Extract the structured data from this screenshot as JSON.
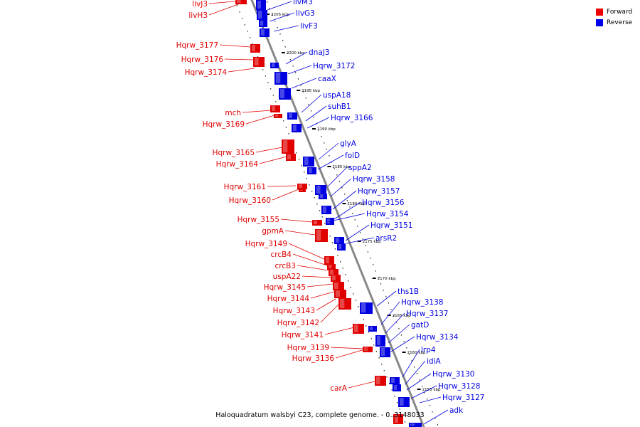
{
  "legend": {
    "forward_label": "Forward",
    "reverse_label": "Reverse",
    "forward_color": "#ee0000",
    "reverse_color": "#0000ee"
  },
  "caption": "Haloquadratum walsbyi C23, complete genome. - 0..3148033",
  "colors": {
    "forward": "#e00000",
    "reverse": "#0000e0",
    "backbone": "#888888"
  },
  "ticks": [
    "2205 kbp",
    "2200 kbp",
    "2195 kbp",
    "2190 kbp",
    "2185 kbp",
    "2180 kbp",
    "2175 kbp",
    "2170 kbp",
    "2165 kbp",
    "2160 kbp",
    "2155 kbp"
  ],
  "forward_genes": [
    "livJ3",
    "livH3",
    "Hqrw_3177",
    "Hqrw_3176",
    "Hqrw_3174",
    "mch",
    "Hqrw_3169",
    "Hqrw_3165",
    "Hqrw_3164",
    "Hqrw_3161",
    "Hqrw_3160",
    "Hqrw_3155",
    "gpmA",
    "Hqrw_3149",
    "crcB4",
    "crcB3",
    "uspA22",
    "Hqrw_3145",
    "Hqrw_3144",
    "Hqrw_3143",
    "Hqrw_3142",
    "Hqrw_3141",
    "Hqrw_3139",
    "Hqrw_3136",
    "carA"
  ],
  "reverse_genes": [
    "livM3",
    "livG3",
    "livF3",
    "dnaJ3",
    "Hqrw_3172",
    "caaX",
    "uspA18",
    "suhB1",
    "Hqrw_3166",
    "glyA",
    "folD",
    "sppA2",
    "Hqrw_3158",
    "Hqrw_3157",
    "Hqrw_3156",
    "Hqrw_3154",
    "Hqrw_3151",
    "arsR2",
    "ths1B",
    "Hqrw_3138",
    "Hqrw_3137",
    "gatD",
    "Hqrw_3134",
    "lrp4",
    "idiA",
    "Hqrw_3130",
    "Hqrw_3128",
    "Hqrw_3127",
    "adk"
  ]
}
